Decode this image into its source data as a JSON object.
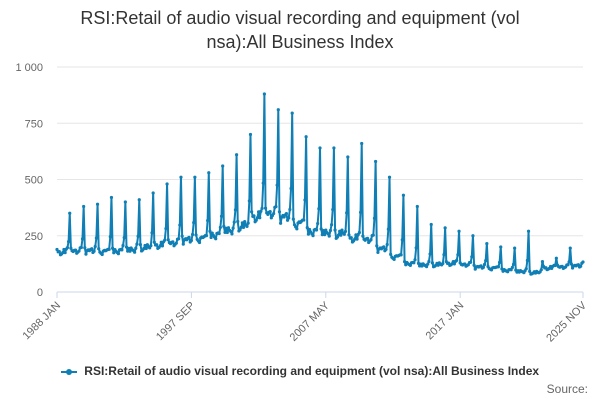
{
  "chart_data": {
    "type": "line",
    "title_line1": "RSI:Retail of audio visual recording and equipment (vol",
    "title_line2": "nsa):All Business Index",
    "y_ticks": [
      "1 000",
      "750",
      "500",
      "250",
      "0"
    ],
    "x_ticks": [
      "1988 JAN",
      "1997 SEP",
      "2007 MAY",
      "2017 JAN",
      "2025 NOV"
    ],
    "ylim": [
      0,
      1000
    ],
    "grid": true,
    "legend_position": "bottom",
    "series": [
      {
        "name": "RSI:Retail of audio visual recording and equipment (vol nsa):All Business Index",
        "color": "#0f7fb5",
        "start": "1988-01",
        "end": "2025-11",
        "annual_baseline": [
          {
            "year": 1988,
            "base": 175,
            "dec_peak": 350
          },
          {
            "year": 1989,
            "base": 180,
            "dec_peak": 380
          },
          {
            "year": 1990,
            "base": 182,
            "dec_peak": 390
          },
          {
            "year": 1991,
            "base": 178,
            "dec_peak": 420
          },
          {
            "year": 1992,
            "base": 180,
            "dec_peak": 400
          },
          {
            "year": 1993,
            "base": 185,
            "dec_peak": 410
          },
          {
            "year": 1994,
            "base": 195,
            "dec_peak": 440
          },
          {
            "year": 1995,
            "base": 205,
            "dec_peak": 480
          },
          {
            "year": 1996,
            "base": 215,
            "dec_peak": 510
          },
          {
            "year": 1997,
            "base": 230,
            "dec_peak": 510
          },
          {
            "year": 1998,
            "base": 235,
            "dec_peak": 530
          },
          {
            "year": 1999,
            "base": 250,
            "dec_peak": 560
          },
          {
            "year": 2000,
            "base": 270,
            "dec_peak": 610
          },
          {
            "year": 2001,
            "base": 290,
            "dec_peak": 700
          },
          {
            "year": 2002,
            "base": 330,
            "dec_peak": 880
          },
          {
            "year": 2003,
            "base": 345,
            "dec_peak": 810
          },
          {
            "year": 2004,
            "base": 330,
            "dec_peak": 795
          },
          {
            "year": 2005,
            "base": 300,
            "dec_peak": 690
          },
          {
            "year": 2006,
            "base": 265,
            "dec_peak": 640
          },
          {
            "year": 2007,
            "base": 260,
            "dec_peak": 640
          },
          {
            "year": 2008,
            "base": 255,
            "dec_peak": 600
          },
          {
            "year": 2009,
            "base": 235,
            "dec_peak": 660
          },
          {
            "year": 2010,
            "base": 230,
            "dec_peak": 580
          },
          {
            "year": 2011,
            "base": 190,
            "dec_peak": 510
          },
          {
            "year": 2012,
            "base": 155,
            "dec_peak": 430
          },
          {
            "year": 2013,
            "base": 125,
            "dec_peak": 380
          },
          {
            "year": 2014,
            "base": 118,
            "dec_peak": 300
          },
          {
            "year": 2015,
            "base": 120,
            "dec_peak": 285
          },
          {
            "year": 2016,
            "base": 125,
            "dec_peak": 270
          },
          {
            "year": 2017,
            "base": 120,
            "dec_peak": 250
          },
          {
            "year": 2018,
            "base": 110,
            "dec_peak": 215
          },
          {
            "year": 2019,
            "base": 105,
            "dec_peak": 200
          },
          {
            "year": 2020,
            "base": 95,
            "dec_peak": 195
          },
          {
            "year": 2021,
            "base": 90,
            "dec_peak": 270
          },
          {
            "year": 2022,
            "base": 85,
            "dec_peak": 135
          },
          {
            "year": 2023,
            "base": 105,
            "dec_peak": 150
          },
          {
            "year": 2024,
            "base": 110,
            "dec_peak": 195
          },
          {
            "year": 2025,
            "base": 115,
            "dec_peak": 180
          }
        ]
      }
    ]
  },
  "source_label": "Source:"
}
